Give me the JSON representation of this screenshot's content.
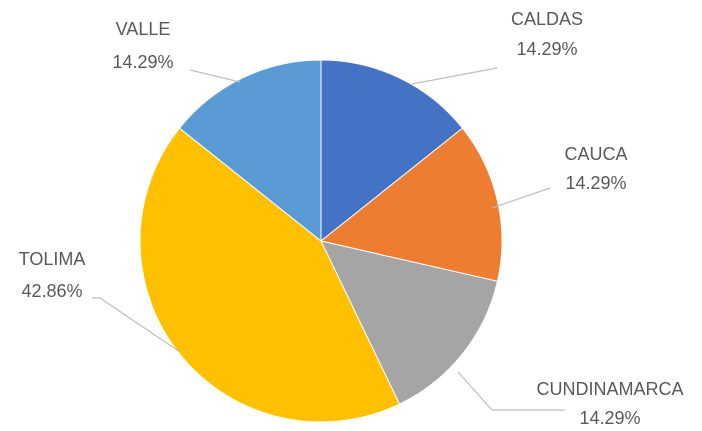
{
  "chart_data": {
    "type": "pie",
    "categories": [
      "CALDAS",
      "CAUCA",
      "CUNDINAMARCA",
      "TOLIMA",
      "VALLE"
    ],
    "values": [
      14.29,
      14.29,
      14.29,
      42.86,
      14.29
    ],
    "value_labels": [
      "14.29%",
      "14.29%",
      "14.29%",
      "42.86%",
      "14.29%"
    ],
    "colors": [
      "#4472c4",
      "#ed7d31",
      "#a5a5a5",
      "#ffc000",
      "#5b9bd5"
    ]
  }
}
